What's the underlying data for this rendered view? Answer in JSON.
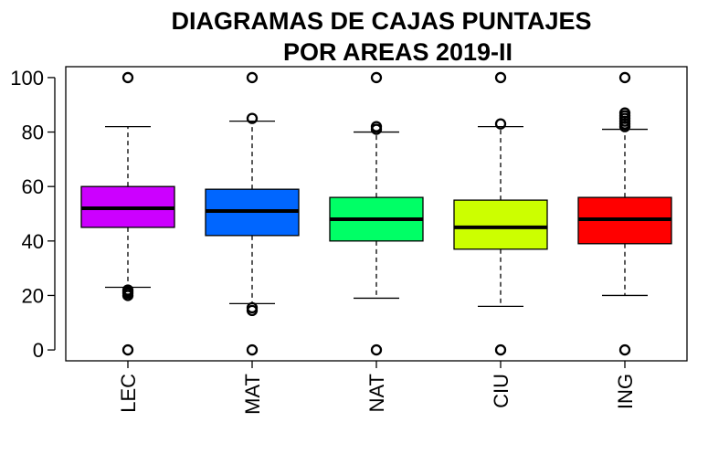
{
  "chart_data": {
    "type": "box",
    "title_lines": [
      "DIAGRAMAS DE CAJAS PUNTAJES",
      "POR AREAS 2019-II"
    ],
    "categories": [
      "LEC",
      "MAT",
      "NAT",
      "CIU",
      "ING"
    ],
    "ylim": [
      -4,
      104
    ],
    "yticks": [
      0,
      20,
      40,
      60,
      80,
      100
    ],
    "grid": false,
    "legend": "none",
    "boxes": [
      {
        "name": "LEC",
        "color": "#cc00ff",
        "whisker_low": 23,
        "q1": 45,
        "median": 52,
        "q3": 60,
        "whisker_high": 82,
        "outliers": [
          0,
          20,
          20.8,
          21.5,
          22,
          100
        ]
      },
      {
        "name": "MAT",
        "color": "#0066ff",
        "whisker_low": 17,
        "q1": 42,
        "median": 51,
        "q3": 59,
        "whisker_high": 84,
        "outliers": [
          0,
          14.5,
          15.5,
          85,
          100
        ]
      },
      {
        "name": "NAT",
        "color": "#00ff66",
        "whisker_low": 19,
        "q1": 40,
        "median": 48,
        "q3": 56,
        "whisker_high": 80,
        "outliers": [
          0,
          81,
          82,
          100
        ]
      },
      {
        "name": "CIU",
        "color": "#ccff00",
        "whisker_low": 16,
        "q1": 37,
        "median": 45,
        "q3": 55,
        "whisker_high": 82,
        "outliers": [
          0,
          83,
          100
        ]
      },
      {
        "name": "ING",
        "color": "#ff0000",
        "whisker_low": 20,
        "q1": 39,
        "median": 48,
        "q3": 56,
        "whisker_high": 81,
        "outliers": [
          0,
          82,
          83,
          84,
          85,
          86,
          87,
          100
        ]
      }
    ]
  }
}
